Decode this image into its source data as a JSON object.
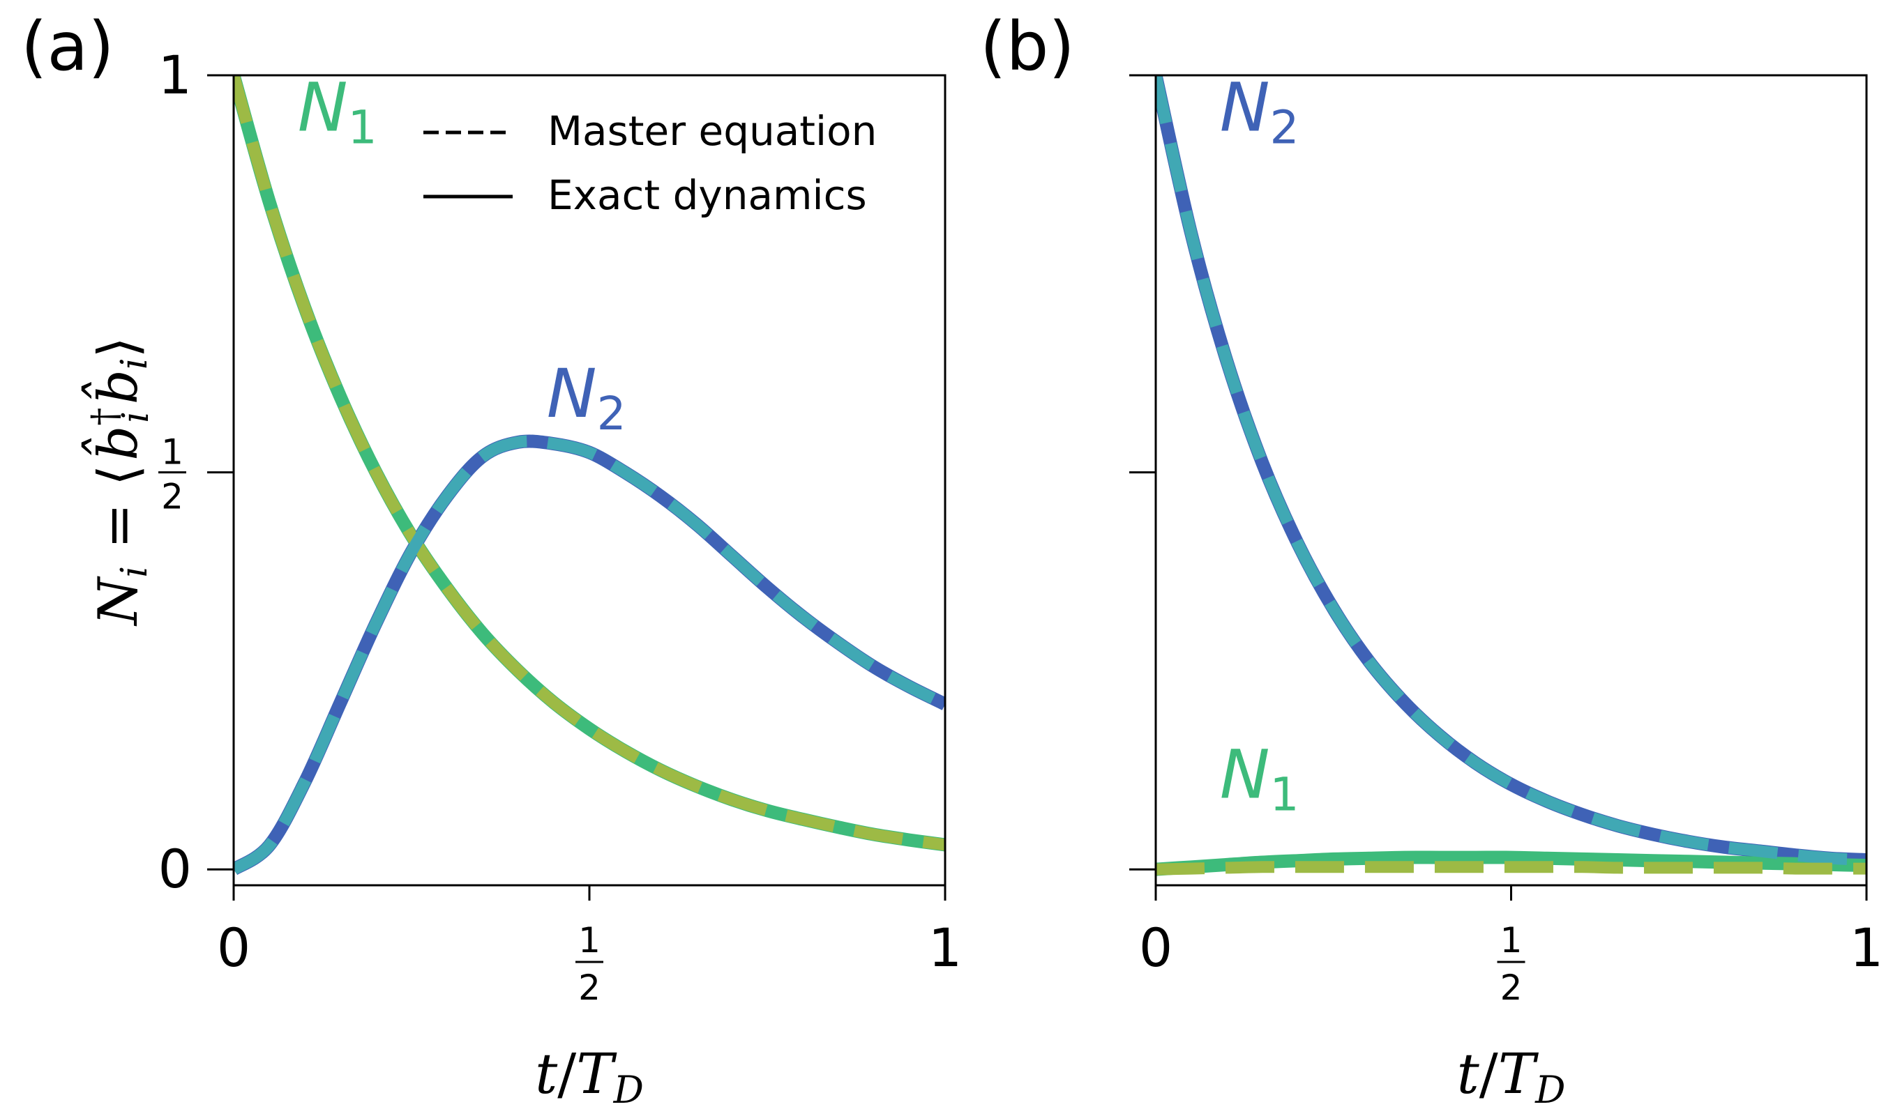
{
  "figure": {
    "ylabel_lhs": "N",
    "ylabel_lhs_sub": "i",
    "ylabel_eq": " = ⟨",
    "ylabel_bdag": "b̂",
    "ylabel_bdag_sup": "†",
    "ylabel_bdag_sub": "i",
    "ylabel_b": "b̂",
    "ylabel_b_sub": "i",
    "ylabel_close": "⟩",
    "legend": {
      "dashed_label": "Master equation",
      "solid_label": "Exact dynamics"
    },
    "colors": {
      "N1_solid": "#3dbb7b",
      "N1_dashed": "#9dba45",
      "N2_solid": "#3f62b6",
      "N2_dashed": "#40a8b4"
    }
  },
  "chart_data": [
    {
      "type": "line",
      "panel_label": "(a)",
      "xlabel": "t/T_D",
      "xlabel_t": "t",
      "xlabel_slash": "/",
      "xlabel_T": "T",
      "xlabel_sub": "D",
      "xlim": [
        0,
        1
      ],
      "ylim": [
        -0.02,
        1
      ],
      "xticks": [
        {
          "value": 0,
          "label": "0"
        },
        {
          "value": 0.5,
          "num": "1",
          "den": "2"
        },
        {
          "value": 1,
          "label": "1"
        }
      ],
      "yticks": [
        {
          "value": 0,
          "label": "0"
        },
        {
          "value": 0.5,
          "num": "1",
          "den": "2"
        },
        {
          "value": 1,
          "label": "1"
        }
      ],
      "annotations": [
        {
          "text": "N",
          "sub": "1",
          "series": "N1",
          "x": 0.09,
          "y": 0.93
        },
        {
          "text": "N",
          "sub": "2",
          "series": "N2",
          "x": 0.44,
          "y": 0.57
        }
      ],
      "series": [
        {
          "name": "N",
          "sub": "1",
          "key": "N1",
          "kind": "exact",
          "x": [
            0,
            0.05,
            0.1,
            0.15,
            0.2,
            0.25,
            0.3,
            0.35,
            0.4,
            0.45,
            0.5,
            0.55,
            0.6,
            0.65,
            0.7,
            0.75,
            0.8,
            0.85,
            0.9,
            0.95,
            1
          ],
          "y": [
            1,
            0.841,
            0.707,
            0.595,
            0.5,
            0.42,
            0.354,
            0.297,
            0.25,
            0.21,
            0.177,
            0.149,
            0.125,
            0.105,
            0.088,
            0.074,
            0.063,
            0.053,
            0.044,
            0.037,
            0.031
          ]
        },
        {
          "name": "N",
          "sub": "1",
          "key": "N1",
          "kind": "master",
          "x": [
            0,
            0.05,
            0.1,
            0.15,
            0.2,
            0.25,
            0.3,
            0.35,
            0.4,
            0.45,
            0.5,
            0.55,
            0.6,
            0.65,
            0.7,
            0.75,
            0.8,
            0.85,
            0.9,
            0.95,
            1
          ],
          "y": [
            1,
            0.841,
            0.707,
            0.595,
            0.5,
            0.42,
            0.354,
            0.297,
            0.25,
            0.21,
            0.177,
            0.149,
            0.125,
            0.105,
            0.088,
            0.074,
            0.063,
            0.053,
            0.044,
            0.037,
            0.031
          ]
        },
        {
          "name": "N",
          "sub": "2",
          "key": "N2",
          "kind": "exact",
          "x": [
            0,
            0.05,
            0.1,
            0.15,
            0.2,
            0.25,
            0.3,
            0.35,
            0.4,
            0.45,
            0.5,
            0.55,
            0.6,
            0.65,
            0.7,
            0.75,
            0.8,
            0.85,
            0.9,
            0.95,
            1
          ],
          "y": [
            0,
            0.03,
            0.11,
            0.21,
            0.31,
            0.4,
            0.47,
            0.52,
            0.538,
            0.536,
            0.525,
            0.5,
            0.47,
            0.435,
            0.395,
            0.355,
            0.318,
            0.285,
            0.255,
            0.23,
            0.208
          ]
        },
        {
          "name": "N",
          "sub": "2",
          "key": "N2",
          "kind": "master",
          "x": [
            0,
            0.05,
            0.1,
            0.15,
            0.2,
            0.25,
            0.3,
            0.35,
            0.4,
            0.45,
            0.5,
            0.55,
            0.6,
            0.65,
            0.7,
            0.75,
            0.8,
            0.85,
            0.9,
            0.95,
            1
          ],
          "y": [
            0,
            0.03,
            0.11,
            0.21,
            0.31,
            0.4,
            0.47,
            0.52,
            0.538,
            0.536,
            0.525,
            0.5,
            0.47,
            0.435,
            0.395,
            0.355,
            0.318,
            0.285,
            0.255,
            0.23,
            0.208
          ]
        }
      ]
    },
    {
      "type": "line",
      "panel_label": "(b)",
      "xlabel": "t/T_D",
      "xlabel_t": "t",
      "xlabel_slash": "/",
      "xlabel_T": "T",
      "xlabel_sub": "D",
      "xlim": [
        0,
        1
      ],
      "ylim": [
        -0.02,
        1
      ],
      "xticks": [
        {
          "value": 0,
          "label": "0"
        },
        {
          "value": 0.5,
          "num": "1",
          "den": "2"
        },
        {
          "value": 1,
          "label": "1"
        }
      ],
      "yticks": [
        {
          "value": 0,
          "label": ""
        },
        {
          "value": 0.5,
          "label": ""
        },
        {
          "value": 1,
          "label": ""
        }
      ],
      "annotations": [
        {
          "text": "N",
          "sub": "2",
          "series": "N2",
          "x": 0.09,
          "y": 0.93
        },
        {
          "text": "N",
          "sub": "1",
          "series": "N1",
          "x": 0.09,
          "y": 0.09
        }
      ],
      "series": [
        {
          "name": "N",
          "sub": "2",
          "key": "N2",
          "kind": "exact",
          "x": [
            0,
            0.05,
            0.1,
            0.15,
            0.2,
            0.25,
            0.3,
            0.35,
            0.4,
            0.45,
            0.5,
            0.55,
            0.6,
            0.65,
            0.7,
            0.75,
            0.8,
            0.85,
            0.9,
            0.95,
            1
          ],
          "y": [
            1,
            0.8,
            0.64,
            0.512,
            0.41,
            0.328,
            0.262,
            0.21,
            0.168,
            0.134,
            0.107,
            0.086,
            0.069,
            0.055,
            0.044,
            0.035,
            0.028,
            0.023,
            0.018,
            0.014,
            0.012
          ]
        },
        {
          "name": "N",
          "sub": "2",
          "key": "N2",
          "kind": "master",
          "x": [
            0,
            0.05,
            0.1,
            0.15,
            0.2,
            0.25,
            0.3,
            0.35,
            0.4,
            0.45,
            0.5,
            0.55,
            0.6,
            0.65,
            0.7,
            0.75,
            0.8,
            0.85,
            0.9,
            0.95,
            1
          ],
          "y": [
            1,
            0.8,
            0.64,
            0.512,
            0.41,
            0.328,
            0.262,
            0.21,
            0.168,
            0.134,
            0.107,
            0.086,
            0.069,
            0.055,
            0.044,
            0.035,
            0.028,
            0.023,
            0.018,
            0.014,
            0.012
          ]
        },
        {
          "name": "N",
          "sub": "1",
          "key": "N1",
          "kind": "exact",
          "x": [
            0,
            0.05,
            0.1,
            0.15,
            0.2,
            0.25,
            0.3,
            0.35,
            0.4,
            0.45,
            0.5,
            0.55,
            0.6,
            0.65,
            0.7,
            0.75,
            0.8,
            0.85,
            0.9,
            0.95,
            1
          ],
          "y": [
            0,
            0.003,
            0.006,
            0.009,
            0.011,
            0.013,
            0.014,
            0.015,
            0.015,
            0.015,
            0.015,
            0.014,
            0.013,
            0.012,
            0.011,
            0.01,
            0.009,
            0.008,
            0.007,
            0.006,
            0.005
          ]
        },
        {
          "name": "N",
          "sub": "1",
          "key": "N1",
          "kind": "master",
          "x": [
            0,
            0.05,
            0.1,
            0.15,
            0.2,
            0.25,
            0.3,
            0.35,
            0.4,
            0.45,
            0.5,
            0.55,
            0.6,
            0.65,
            0.7,
            0.75,
            0.8,
            0.85,
            0.9,
            0.95,
            1
          ],
          "y": [
            0,
            0.001,
            0.002,
            0.003,
            0.003,
            0.003,
            0.003,
            0.003,
            0.003,
            0.003,
            0.003,
            0.003,
            0.003,
            0.002,
            0.002,
            0.002,
            0.002,
            0.002,
            0.001,
            0.001,
            0.001
          ]
        }
      ]
    }
  ]
}
